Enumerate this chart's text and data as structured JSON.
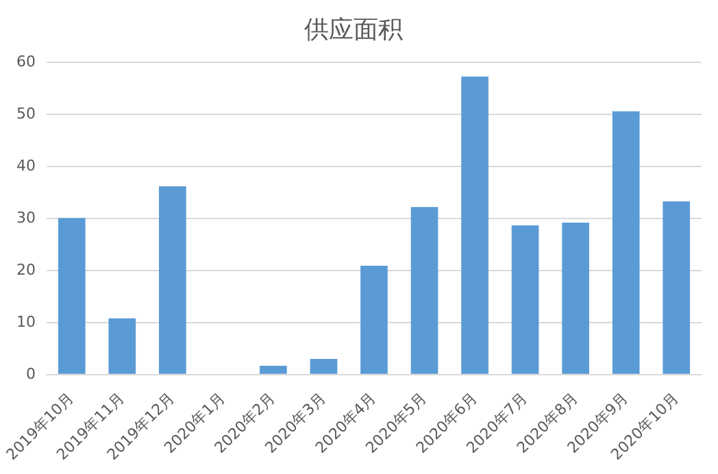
{
  "chart_data": {
    "type": "bar",
    "title": "供应面积",
    "categories": [
      "2019年10月",
      "2019年11月",
      "2019年12月",
      "2020年1月",
      "2020年2月",
      "2020年3月",
      "2020年4月",
      "2020年5月",
      "2020年6月",
      "2020年7月",
      "2020年8月",
      "2020年9月",
      "2020年10月"
    ],
    "values": [
      30.1,
      10.8,
      36.2,
      0,
      1.7,
      3.0,
      20.9,
      32.2,
      57.3,
      28.7,
      29.2,
      50.6,
      33.3
    ],
    "color": "#5b9bd5",
    "ylim": [
      0,
      60
    ],
    "yticks": [
      0,
      10,
      20,
      30,
      40,
      50,
      60
    ],
    "grid": "y"
  }
}
